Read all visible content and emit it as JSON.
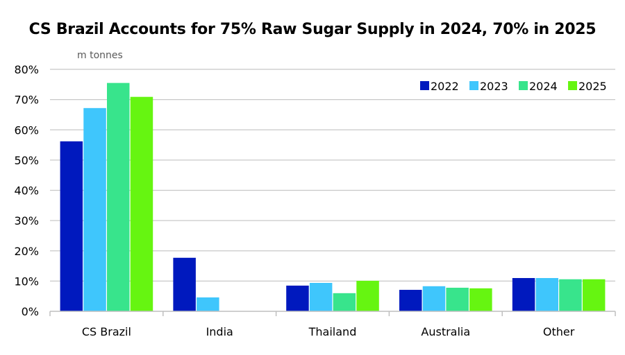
{
  "chart_data": {
    "type": "bar",
    "title": "CS Brazil Accounts for 75% Raw Sugar Supply in 2024, 70% in 2025",
    "unit_label": "m tonnes",
    "xlabel": "",
    "ylabel": "",
    "ylim": [
      0,
      80
    ],
    "yticks": [
      "0%",
      "10%",
      "20%",
      "30%",
      "40%",
      "50%",
      "60%",
      "70%",
      "80%"
    ],
    "ytick_values": [
      0,
      10,
      20,
      30,
      40,
      50,
      60,
      70,
      80
    ],
    "grid": true,
    "legend_position": "top-right",
    "categories": [
      "CS Brazil",
      "India",
      "Thailand",
      "Australia",
      "Other"
    ],
    "series": [
      {
        "name": "2022",
        "color": "#0019BE",
        "values": [
          56.2,
          17.7,
          8.5,
          7.1,
          11.0
        ]
      },
      {
        "name": "2023",
        "color": "#3FC6FC",
        "values": [
          67.2,
          4.6,
          9.4,
          8.3,
          11.0
        ]
      },
      {
        "name": "2024",
        "color": "#38E48C",
        "values": [
          75.5,
          0,
          6.0,
          7.8,
          10.6
        ]
      },
      {
        "name": "2025",
        "color": "#66F511",
        "values": [
          70.9,
          0,
          10.1,
          7.6,
          10.6
        ]
      }
    ]
  }
}
